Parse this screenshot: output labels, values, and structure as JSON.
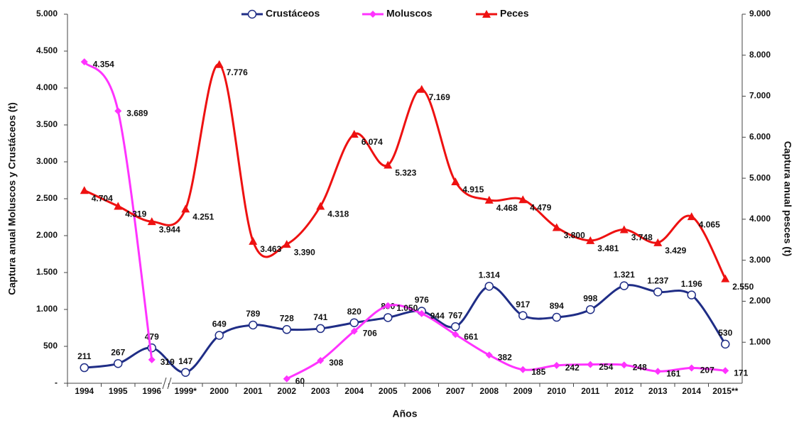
{
  "chart_data": {
    "type": "line",
    "x_label": "Años",
    "y_label": "Captura anual Moluscos y Crustáceos (t)",
    "y2_label": "Captura anual pesces (t)",
    "categories": [
      "1994",
      "1995",
      "1996",
      "1999*",
      "2000",
      "2001",
      "2002",
      "2003",
      "2004",
      "2005",
      "2006",
      "2007",
      "2008",
      "2009",
      "2010",
      "2011",
      "2012",
      "2013",
      "2014",
      "2015**"
    ],
    "series": [
      {
        "name": "Crustáceos",
        "color": "#1f2d86",
        "marker": "circle",
        "values": [
          211,
          267,
          479,
          147,
          649,
          789,
          728,
          741,
          820,
          890,
          976,
          767,
          1314,
          917,
          894,
          998,
          1321,
          1237,
          1196,
          530
        ],
        "value_labels": [
          "211",
          "267",
          "479",
          "147",
          "649",
          "789",
          "728",
          "741",
          "820",
          "890",
          "976",
          "767",
          "1.314",
          "917",
          "894",
          "998",
          "1.321",
          "1.237",
          "1.196",
          "530"
        ]
      },
      {
        "name": "Moluscos",
        "color": "#ff33ff",
        "marker": "diamond",
        "values": [
          4354,
          3689,
          319,
          null,
          null,
          null,
          60,
          308,
          706,
          1050,
          944,
          661,
          382,
          185,
          242,
          254,
          248,
          161,
          207,
          171
        ],
        "value_labels": [
          "4.354",
          "3.689",
          "319",
          null,
          null,
          null,
          "60",
          "308",
          "706",
          "1.050",
          "944",
          "661",
          "382",
          "185",
          "242",
          "254",
          "248",
          "161",
          "207",
          "171"
        ]
      },
      {
        "name": "Peces",
        "color": "#ee1111",
        "marker": "triangle",
        "axis": "y2",
        "values": [
          4704,
          4319,
          3944,
          4251,
          7776,
          3463,
          3390,
          4318,
          6074,
          5323,
          7169,
          4915,
          4468,
          4479,
          3800,
          3481,
          3748,
          3429,
          4065,
          2550
        ],
        "value_labels": [
          "4.704",
          "4.319",
          "3.944",
          "4.251",
          "7.776",
          "3.463",
          "3.390",
          "4.318",
          "6.074",
          "5.323",
          "7.169",
          "4.915",
          "4.468",
          "4.479",
          "3.800",
          "3.481",
          "3.748",
          "3.429",
          "4.065",
          "2.550"
        ]
      }
    ],
    "ylim": [
      0,
      5000
    ],
    "yticks": [
      {
        "value": 0,
        "label": "-"
      },
      500,
      {
        "value": 1000,
        "label": "1.000"
      },
      {
        "value": 1500,
        "label": "1.500"
      },
      {
        "value": 2000,
        "label": "2.000"
      },
      {
        "value": 2500,
        "label": "2.500"
      },
      {
        "value": 3000,
        "label": "3.000"
      },
      {
        "value": 3500,
        "label": "3.500"
      },
      {
        "value": 4000,
        "label": "4.000"
      },
      {
        "value": 4500,
        "label": "4.500"
      },
      {
        "value": 5000,
        "label": "5.000"
      }
    ],
    "y2lim": [
      0,
      9000
    ],
    "y2ticks": [
      {
        "value": 1000,
        "label": "1.000"
      },
      {
        "value": 2000,
        "label": "2.000"
      },
      {
        "value": 3000,
        "label": "3.000"
      },
      {
        "value": 4000,
        "label": "4.000"
      },
      {
        "value": 5000,
        "label": "5.000"
      },
      {
        "value": 6000,
        "label": "6.000"
      },
      {
        "value": 7000,
        "label": "7.000"
      },
      {
        "value": 8000,
        "label": "8.000"
      },
      {
        "value": 9000,
        "label": "9.000"
      }
    ],
    "grid": false,
    "legend": "top"
  }
}
